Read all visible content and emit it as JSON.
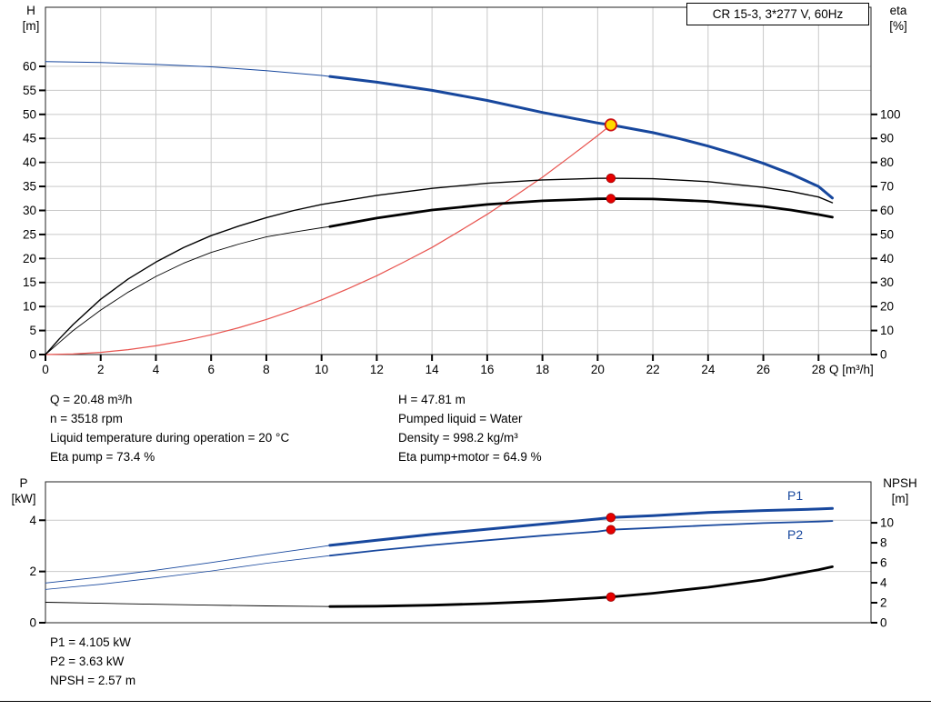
{
  "colors": {
    "grid": "#c9c9c9",
    "axis": "#222222",
    "blue": "#17479d",
    "black": "#000000",
    "red": "#e8534e",
    "dot_red": "#e60000",
    "dot_yellow": "#ffd900"
  },
  "info": {
    "left": [
      "Q = 20.48 m³/h",
      "n = 3518 rpm",
      "Liquid temperature during operation = 20 °C",
      "Eta pump = 73.4 %"
    ],
    "right": [
      "H = 47.81 m",
      "Pumped liquid = Water",
      "Density = 998.2 kg/m³",
      "Eta pump+motor = 64.9 %"
    ],
    "bottom": [
      "P1 = 4.105 kW",
      "P2 = 3.63 kW",
      "NPSH = 2.57 m"
    ]
  },
  "chart_data": [
    {
      "type": "line",
      "title": "CR 15-3, 3*277 V, 60Hz",
      "x_axis": {
        "label": "Q [m³/h]",
        "min": 0,
        "max": 29.9,
        "ticks": [
          0,
          2,
          4,
          6,
          8,
          10,
          12,
          14,
          16,
          18,
          20,
          22,
          24,
          26,
          28
        ]
      },
      "y_left": {
        "name": "H",
        "unit": "[m]",
        "min": 0,
        "max": 72.3,
        "ticks": [
          0,
          5,
          10,
          15,
          20,
          25,
          30,
          35,
          40,
          45,
          50,
          55,
          60
        ]
      },
      "y_right": {
        "name": "eta",
        "unit": "[%]",
        "min": 0,
        "max": 144.6,
        "ticks": [
          0,
          10,
          20,
          30,
          40,
          50,
          60,
          70,
          80,
          90,
          100
        ]
      },
      "grid": {
        "vertical": true,
        "horizontal": true
      },
      "series": [
        {
          "name": "system-curve",
          "axis": "left",
          "color": "#e8534e",
          "width": 1.2,
          "points": [
            [
              0,
              0
            ],
            [
              1,
              0.11
            ],
            [
              2,
              0.46
            ],
            [
              3,
              1.03
            ],
            [
              4,
              1.82
            ],
            [
              5,
              2.85
            ],
            [
              6,
              4.1
            ],
            [
              7,
              5.59
            ],
            [
              8,
              7.3
            ],
            [
              9,
              9.24
            ],
            [
              10,
              11.4
            ],
            [
              11,
              13.8
            ],
            [
              12,
              16.4
            ],
            [
              13,
              19.3
            ],
            [
              14,
              22.3
            ],
            [
              15,
              25.7
            ],
            [
              16,
              29.2
            ],
            [
              17,
              33.0
            ],
            [
              18,
              36.9
            ],
            [
              19,
              41.2
            ],
            [
              20,
              45.6
            ],
            [
              20.48,
              47.81
            ]
          ]
        },
        {
          "name": "head-curve-thin",
          "axis": "left",
          "color": "#17479d",
          "width": 1,
          "points": [
            [
              0,
              61.0
            ],
            [
              2,
              60.8
            ],
            [
              4,
              60.4
            ],
            [
              6,
              59.9
            ],
            [
              8,
              59.1
            ],
            [
              10,
              58.1
            ],
            [
              10.3,
              57.9
            ]
          ]
        },
        {
          "name": "head-curve",
          "axis": "left",
          "color": "#17479d",
          "width": 3,
          "points": [
            [
              10.3,
              57.9
            ],
            [
              12,
              56.7
            ],
            [
              14,
              55.0
            ],
            [
              16,
              52.9
            ],
            [
              18,
              50.4
            ],
            [
              20,
              48.2
            ],
            [
              20.48,
              47.81
            ],
            [
              22,
              46.2
            ],
            [
              23,
              44.9
            ],
            [
              24,
              43.4
            ],
            [
              25,
              41.7
            ],
            [
              26,
              39.8
            ],
            [
              27,
              37.6
            ],
            [
              28,
              35.0
            ],
            [
              28.5,
              32.6
            ]
          ]
        },
        {
          "name": "eta-pump-curve",
          "axis": "right",
          "color": "#000000",
          "width": 1.4,
          "points": [
            [
              0,
              0
            ],
            [
              0.5,
              6.5
            ],
            [
              1,
              12.5
            ],
            [
              2,
              23
            ],
            [
              3,
              31.5
            ],
            [
              4,
              38.5
            ],
            [
              5,
              44.5
            ],
            [
              6,
              49.5
            ],
            [
              7,
              53.5
            ],
            [
              8,
              57
            ],
            [
              9,
              60
            ],
            [
              10,
              62.5
            ],
            [
              12,
              66.3
            ],
            [
              14,
              69.2
            ],
            [
              16,
              71.3
            ],
            [
              18,
              72.7
            ],
            [
              20,
              73.35
            ],
            [
              20.48,
              73.4
            ],
            [
              22,
              73.2
            ],
            [
              24,
              72.0
            ],
            [
              26,
              69.6
            ],
            [
              27,
              67.9
            ],
            [
              28,
              65.6
            ],
            [
              28.5,
              63.2
            ]
          ]
        },
        {
          "name": "eta-pump-motor-thin",
          "axis": "right",
          "color": "#000000",
          "width": 0.9,
          "points": [
            [
              0,
              0
            ],
            [
              0.5,
              5
            ],
            [
              1,
              10
            ],
            [
              2,
              18.5
            ],
            [
              3,
              26
            ],
            [
              4,
              32.5
            ],
            [
              5,
              38
            ],
            [
              6,
              42.5
            ],
            [
              7,
              46
            ],
            [
              8,
              49
            ],
            [
              9,
              51
            ],
            [
              10,
              52.8
            ],
            [
              10.3,
              53.3
            ]
          ]
        },
        {
          "name": "eta-pump-motor-curve",
          "axis": "right",
          "color": "#000000",
          "width": 2.8,
          "points": [
            [
              10.3,
              53.3
            ],
            [
              12,
              56.8
            ],
            [
              14,
              60.2
            ],
            [
              16,
              62.5
            ],
            [
              18,
              64.0
            ],
            [
              20,
              64.85
            ],
            [
              20.48,
              64.9
            ],
            [
              22,
              64.75
            ],
            [
              24,
              63.8
            ],
            [
              26,
              61.7
            ],
            [
              27,
              60.2
            ],
            [
              28,
              58.3
            ],
            [
              28.5,
              57.2
            ]
          ]
        }
      ],
      "markers": [
        {
          "x": 20.48,
          "value": 73.4,
          "axis": "right",
          "kind": "point"
        },
        {
          "x": 20.48,
          "value": 64.9,
          "axis": "right",
          "kind": "point"
        },
        {
          "x": 20.48,
          "value": 47.81,
          "axis": "left",
          "kind": "duty"
        }
      ]
    },
    {
      "type": "line",
      "x_axis": {
        "label": "",
        "min": 0,
        "max": 29.9,
        "ticks": []
      },
      "y_left": {
        "name": "P",
        "unit": "[kW]",
        "min": 0,
        "max": 5.5,
        "ticks": [
          0,
          2,
          4
        ]
      },
      "y_right": {
        "name": "NPSH",
        "unit": "[m]",
        "min": 0,
        "max": 14.1,
        "ticks": [
          0,
          2,
          4,
          6,
          8,
          10
        ]
      },
      "grid": {
        "vertical": false,
        "horizontal": true
      },
      "series": [
        {
          "name": "p1-curve-thin",
          "axis": "left",
          "color": "#17479d",
          "width": 0.9,
          "points": [
            [
              0,
              1.55
            ],
            [
              2,
              1.78
            ],
            [
              4,
              2.05
            ],
            [
              6,
              2.35
            ],
            [
              8,
              2.67
            ],
            [
              10,
              2.97
            ],
            [
              10.3,
              3.02
            ]
          ]
        },
        {
          "name": "p1-curve",
          "axis": "left",
          "color": "#17479d",
          "width": 3,
          "points": [
            [
              10.3,
              3.02
            ],
            [
              12,
              3.22
            ],
            [
              14,
              3.45
            ],
            [
              16,
              3.65
            ],
            [
              18,
              3.85
            ],
            [
              20,
              4.05
            ],
            [
              20.48,
              4.105
            ],
            [
              22,
              4.18
            ],
            [
              24,
              4.3
            ],
            [
              26,
              4.38
            ],
            [
              28,
              4.44
            ],
            [
              28.5,
              4.46
            ]
          ]
        },
        {
          "name": "p2-curve-thin",
          "axis": "left",
          "color": "#17479d",
          "width": 0.8,
          "points": [
            [
              0,
              1.3
            ],
            [
              2,
              1.5
            ],
            [
              4,
              1.75
            ],
            [
              6,
              2.02
            ],
            [
              8,
              2.32
            ],
            [
              10,
              2.58
            ],
            [
              10.3,
              2.62
            ]
          ]
        },
        {
          "name": "p2-curve",
          "axis": "left",
          "color": "#17479d",
          "width": 1.8,
          "points": [
            [
              10.3,
              2.62
            ],
            [
              12,
              2.82
            ],
            [
              14,
              3.03
            ],
            [
              16,
              3.22
            ],
            [
              18,
              3.4
            ],
            [
              20,
              3.56
            ],
            [
              20.48,
              3.63
            ],
            [
              22,
              3.7
            ],
            [
              24,
              3.8
            ],
            [
              26,
              3.89
            ],
            [
              28,
              3.95
            ],
            [
              28.5,
              3.97
            ]
          ]
        },
        {
          "name": "npsh-curve-thin",
          "axis": "right",
          "color": "#000000",
          "width": 0.9,
          "points": [
            [
              0,
              2.05
            ],
            [
              2,
              1.95
            ],
            [
              4,
              1.85
            ],
            [
              6,
              1.76
            ],
            [
              8,
              1.68
            ],
            [
              10,
              1.63
            ],
            [
              10.3,
              1.62
            ]
          ]
        },
        {
          "name": "npsh-curve",
          "axis": "right",
          "color": "#000000",
          "width": 2.8,
          "points": [
            [
              10.3,
              1.62
            ],
            [
              12,
              1.66
            ],
            [
              14,
              1.76
            ],
            [
              16,
              1.92
            ],
            [
              18,
              2.16
            ],
            [
              20,
              2.48
            ],
            [
              20.48,
              2.57
            ],
            [
              22,
              2.95
            ],
            [
              24,
              3.55
            ],
            [
              26,
              4.3
            ],
            [
              28,
              5.3
            ],
            [
              28.5,
              5.6
            ]
          ]
        }
      ],
      "markers": [
        {
          "x": 20.48,
          "value": 4.105,
          "axis": "left",
          "kind": "point"
        },
        {
          "x": 20.48,
          "value": 3.63,
          "axis": "left",
          "kind": "point"
        },
        {
          "x": 20.48,
          "value": 2.57,
          "axis": "right",
          "kind": "point"
        }
      ],
      "series_labels": [
        {
          "text": "P1"
        },
        {
          "text": "P2"
        }
      ]
    }
  ]
}
